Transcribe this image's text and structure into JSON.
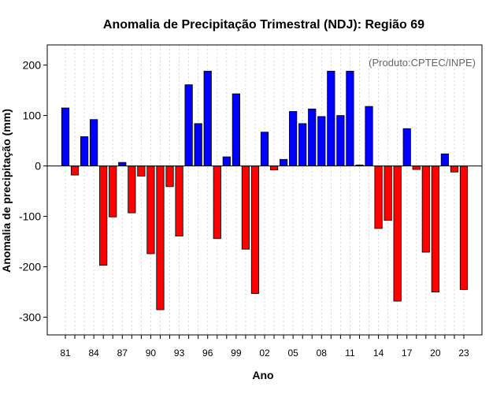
{
  "chart_data": {
    "type": "bar",
    "title": "Anomalia de Precipitação Trimestral (NDJ): Região 69",
    "xlabel": "Ano",
    "ylabel": "Anomalia de precipitação (mm)",
    "annotation": "(Produto:CPTEC/INPE)",
    "ylim": [
      -335,
      240
    ],
    "yticks": [
      -300,
      -200,
      -100,
      0,
      100,
      200
    ],
    "xtick_labels": [
      "81",
      "84",
      "87",
      "90",
      "93",
      "96",
      "99",
      "02",
      "05",
      "08",
      "11",
      "14",
      "17",
      "20",
      "23"
    ],
    "xtick_every": 3,
    "grid": true,
    "positive_color": "#0000ff",
    "negative_color": "#ff0000",
    "categories": [
      "81",
      "82",
      "83",
      "84",
      "85",
      "86",
      "87",
      "88",
      "89",
      "90",
      "91",
      "92",
      "93",
      "94",
      "95",
      "96",
      "97",
      "98",
      "99",
      "00",
      "01",
      "02",
      "03",
      "04",
      "05",
      "06",
      "07",
      "08",
      "09",
      "10",
      "11",
      "12",
      "13",
      "14",
      "15",
      "16",
      "17",
      "18",
      "19",
      "20",
      "21",
      "22",
      "23"
    ],
    "values": [
      115,
      -18,
      58,
      92,
      -197,
      -101,
      7,
      -93,
      -20,
      -174,
      -285,
      -41,
      -139,
      161,
      84,
      188,
      -144,
      18,
      143,
      -165,
      -253,
      67,
      -8,
      13,
      108,
      84,
      113,
      98,
      188,
      100,
      188,
      2,
      118,
      -124,
      -108,
      -268,
      74,
      -7,
      -171,
      -250,
      24,
      -12,
      -245
    ]
  }
}
